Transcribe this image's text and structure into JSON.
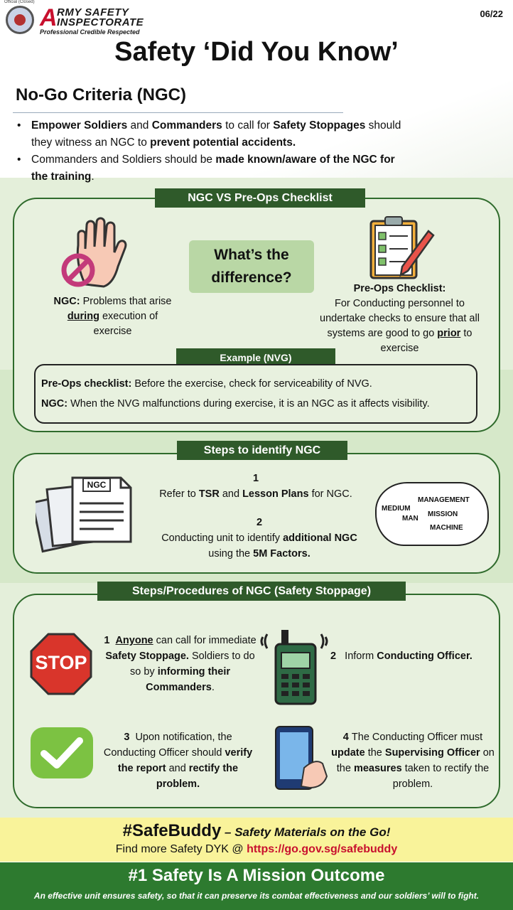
{
  "header": {
    "official_label": "Official (Closed)",
    "brand_first_letter": "A",
    "brand_line1": "RMY SAFETY",
    "brand_line2": "INSPECTORATE",
    "tagline": "Professional  Credible  Respected",
    "issue": "06/22"
  },
  "title": "Safety ‘Did You Know’",
  "subtitle": "No-Go Criteria (NGC)",
  "bullets": [
    {
      "b1": "Empower Soldiers",
      "t1": " and ",
      "b2": "Commanders",
      "t2": " to call for ",
      "b3": "Safety Stoppages",
      "t3": " should they witness an NGC to ",
      "b4": "prevent potential accidents."
    },
    {
      "t1": "Commanders and Soldiers should be ",
      "b1": "made known/aware of the NGC for the training",
      "t2": "."
    }
  ],
  "compare": {
    "banner": "NGC VS Pre-Ops Checklist",
    "question": "What’s the difference?",
    "ngc_label": "NGC:",
    "ngc_text1": " Problems that arise ",
    "ngc_under": "during",
    "ngc_text2": " execution of exercise",
    "preops_label": "Pre-Ops Checklist:",
    "preops_text1": "For Conducting personnel to undertake checks to ensure that all systems are good to go ",
    "preops_under": "prior",
    "preops_text2": " to exercise"
  },
  "example": {
    "banner": "Example (NVG)",
    "line1_label": "Pre-Ops checklist:",
    "line1_text": " Before the exercise, check for serviceability of NVG.",
    "line2_label": "NGC:",
    "line2_text": " When the NVG malfunctions during exercise, it is an NGC as it affects visibility."
  },
  "steps": {
    "banner": "Steps to identify NGC",
    "doc_label": "NGC",
    "s1_num": "1",
    "s1_t1": "Refer to ",
    "s1_b1": "TSR",
    "s1_t2": " and ",
    "s1_b2": "Lesson Plans",
    "s1_t3": " for NGC.",
    "s2_num": "2",
    "s2_t1": "Conducting unit to identify ",
    "s2_b1": "additional NGC",
    "s2_t2": "using the ",
    "s2_b2": "5M Factors.",
    "cloud": [
      "MANAGEMENT",
      "MEDIUM",
      "MISSION",
      "MAN",
      "MACHINE"
    ]
  },
  "procedures": {
    "banner": "Steps/Procedures of NGC (Safety Stoppage)",
    "stop_sign": "STOP",
    "p1_num": "1",
    "p1_under": "Anyone",
    "p1_t1": " can call for immediate ",
    "p1_b1": "Safety Stoppage.",
    "p1_t2": " Soldiers to do so by ",
    "p1_b2": "informing their Commanders",
    "p1_t3": ".",
    "p2_num": "2",
    "p2_t1": "Inform ",
    "p2_b1": "Conducting Officer.",
    "p3_num": "3",
    "p3_t1": "Upon notification, the Conducting Officer should ",
    "p3_b1": "verify the report",
    "p3_t2": " and ",
    "p3_b2": "rectify the problem.",
    "p4_num": "4",
    "p4_t1": "The Conducting Officer must ",
    "p4_b1": "update",
    "p4_t2": " the ",
    "p4_b2": "Supervising Officer",
    "p4_t3": " on the ",
    "p4_b3": "measures",
    "p4_t4": " taken to rectify the problem."
  },
  "promo": {
    "hashtag": "#SafeBuddy",
    "tagline": " – Safety Materials on the Go!",
    "find_text": "Find more Safety DYK @ ",
    "link": "https://go.gov.sg/safebuddy"
  },
  "footer": {
    "title": "#1 Safety Is A Mission Outcome",
    "subtitle": "An effective unit ensures safety, so that it can preserve its combat effectiveness and our soldiers’ will to fight."
  },
  "colors": {
    "brand_red": "#c8102e",
    "banner_green": "#2f5a2a",
    "footer_green": "#2d7a2f",
    "promo_yellow": "#f9f39a"
  }
}
